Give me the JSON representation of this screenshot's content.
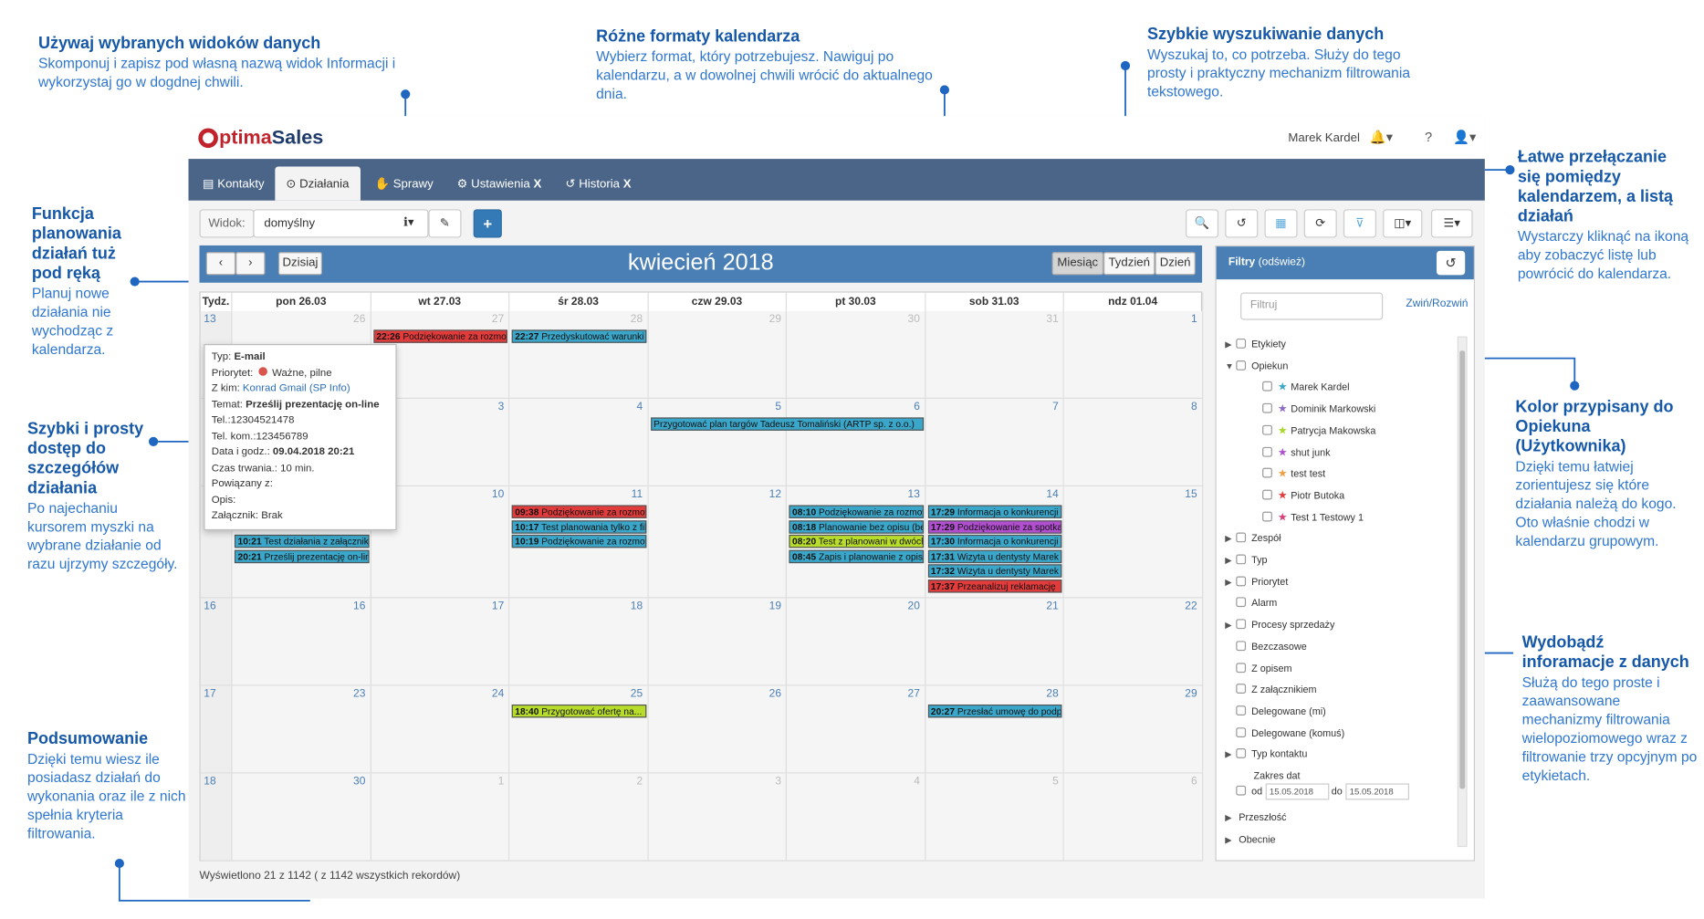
{
  "annotations": {
    "views": {
      "heading": "Używaj wybranych widoków danych",
      "body": "Skomponuj i zapisz pod własną nazwą widok Informacji i wykorzystaj go w dogdnej chwili."
    },
    "formats": {
      "heading": "Różne formaty kalendarza",
      "body": "Wybierz format, który potrzebujesz. Nawiguj po kalendarzu, a w dowolnej chwili wrócić do aktualnego dnia."
    },
    "search": {
      "heading": "Szybkie wyszukiwanie danych",
      "body": "Wyszukaj to, co potrzeba. Służy do tego prosty i praktyczny mechanizm filtrowania tekstowego."
    },
    "switch": {
      "heading": "Łatwe przełączanie się pomiędzy kalendarzem, a listą działań",
      "body": "Wystarczy kliknąć na ikoną aby zobaczyć listę lub powrócić do kalendarza."
    },
    "planning": {
      "heading": "Funkcja planowania działań tuż pod ręką",
      "body": "Planuj nowe działania nie wychodząc z kalendarza."
    },
    "details": {
      "heading": "Szybki i prosty dostęp do szczegółów działania",
      "body": "Po najechaniu kursorem myszki na wybrane działanie od razu ujrzymy szczegóły."
    },
    "color": {
      "heading": "Kolor przypisany do Opiekuna (Użytkownika)",
      "body": "Dzięki temu łatwiej zorientujesz się które działania należą do kogo. Oto właśnie chodzi w kalendarzu grupowym."
    },
    "extract": {
      "heading": "Wydobądź inforamacje z danych",
      "body": "Służą do tego proste i zaawansowane mechanizmy filtrowania wielopoziomowego wraz z filtrowanie trzy opcyjnym po etykietach."
    },
    "summary": {
      "heading": "Podsumowanie",
      "body": "Dzięki temu wiesz ile posiadasz działań do wykonania oraz ile z nich spełnia kryteria filtrowania."
    }
  },
  "header": {
    "logo_part1": "ptima",
    "logo_part2": "Sales",
    "user": "Marek Kardel"
  },
  "tabs": [
    {
      "label": "Kontakty",
      "icon": "id-card-icon",
      "close": ""
    },
    {
      "label": "Działania",
      "icon": "check-circle-icon",
      "close": ""
    },
    {
      "label": "Sprawy",
      "icon": "handshake-icon",
      "close": ""
    },
    {
      "label": "Ustawienia",
      "icon": "gear-icon",
      "close": "X"
    },
    {
      "label": "Historia",
      "icon": "history-icon",
      "close": "X"
    }
  ],
  "toolbar": {
    "view_label": "Widok:",
    "view_value": "domyślny",
    "add_label": "+"
  },
  "calendar": {
    "title": "kwiecień 2018",
    "today_label": "Dzisiaj",
    "view_month": "Miesiąc",
    "view_week": "Tydzień",
    "view_day": "Dzień",
    "week_header": "Tydz.",
    "day_headers": [
      "pon 26.03",
      "wt 27.03",
      "śr 28.03",
      "czw 29.03",
      "pt 30.03",
      "sob 31.03",
      "ndz 01.04"
    ],
    "weeks": [
      {
        "num": "13",
        "days": [
          "26",
          "27",
          "28",
          "29",
          "30",
          "31",
          "1"
        ],
        "other": [
          true,
          true,
          true,
          true,
          true,
          true,
          false
        ]
      },
      {
        "num": "",
        "days": [
          "2",
          "3",
          "4",
          "5",
          "6",
          "7",
          "8"
        ],
        "other": [
          false,
          false,
          false,
          false,
          false,
          false,
          false
        ]
      },
      {
        "num": "",
        "days": [
          "9",
          "10",
          "11",
          "12",
          "13",
          "14",
          "15"
        ],
        "other": [
          false,
          false,
          false,
          false,
          false,
          false,
          false
        ]
      },
      {
        "num": "16",
        "days": [
          "16",
          "17",
          "18",
          "19",
          "20",
          "21",
          "22"
        ],
        "other": [
          false,
          false,
          false,
          false,
          false,
          false,
          false
        ]
      },
      {
        "num": "17",
        "days": [
          "23",
          "24",
          "25",
          "26",
          "27",
          "28",
          "29"
        ],
        "other": [
          false,
          false,
          false,
          false,
          false,
          false,
          false
        ]
      },
      {
        "num": "18",
        "days": [
          "30",
          "1",
          "2",
          "3",
          "4",
          "5",
          "6"
        ],
        "other": [
          false,
          true,
          true,
          true,
          true,
          true,
          true
        ]
      }
    ],
    "events": [
      {
        "week": 0,
        "day": 1,
        "slot": 0,
        "span": 1,
        "time": "22:26",
        "text": "Podziękowanie za rozmowę",
        "color": "#e23b3b"
      },
      {
        "week": 0,
        "day": 2,
        "slot": 0,
        "span": 1,
        "time": "22:27",
        "text": "Przedyskutować warunki",
        "color": "#3aa6c9"
      },
      {
        "week": 1,
        "day": 3,
        "slot": 0,
        "span": 2,
        "time": "",
        "text": "Przygotować plan targów Tadeusz Tomaliński (ARTP sp. z o.o.)",
        "color": "#3aa6c9"
      },
      {
        "week": 2,
        "day": 0,
        "slot": 2,
        "span": 1,
        "time": "10:21",
        "text": "Test działania z załącznikiem",
        "color": "#3aa6c9"
      },
      {
        "week": 2,
        "day": 0,
        "slot": 3,
        "span": 1,
        "time": "20:21",
        "text": "Prześlij prezentację on-line",
        "color": "#3aa6c9"
      },
      {
        "week": 2,
        "day": 2,
        "slot": 0,
        "span": 1,
        "time": "09:38",
        "text": "Podziękowanie za rozmowę",
        "color": "#e23b3b"
      },
      {
        "week": 2,
        "day": 2,
        "slot": 1,
        "span": 1,
        "time": "10:17",
        "text": "Test planowania tylko z filtrem",
        "color": "#3aa6c9"
      },
      {
        "week": 2,
        "day": 2,
        "slot": 2,
        "span": 1,
        "time": "10:19",
        "text": "Podziękowanie za rozmowę",
        "color": "#3aa6c9"
      },
      {
        "week": 2,
        "day": 4,
        "slot": 0,
        "span": 1,
        "time": "08:10",
        "text": "Podziękowanie za rozmowę",
        "color": "#3aa6c9"
      },
      {
        "week": 2,
        "day": 4,
        "slot": 1,
        "span": 1,
        "time": "08:18",
        "text": "Planowanie bez opisu (bez)",
        "color": "#3aa6c9"
      },
      {
        "week": 2,
        "day": 4,
        "slot": 2,
        "span": 1,
        "time": "08:20",
        "text": "Test z planowani w dwóch",
        "color": "#b8dc2c"
      },
      {
        "week": 2,
        "day": 4,
        "slot": 3,
        "span": 1,
        "time": "08:45",
        "text": "Zapis i planowanie z opisem",
        "color": "#3aa6c9"
      },
      {
        "week": 2,
        "day": 5,
        "slot": 0,
        "span": 1,
        "time": "17:29",
        "text": "Informacja o konkurencji",
        "color": "#3aa6c9"
      },
      {
        "week": 2,
        "day": 5,
        "slot": 1,
        "span": 1,
        "time": "17:29",
        "text": "Podziękowanie za spotkanie",
        "color": "#b24fd1"
      },
      {
        "week": 2,
        "day": 5,
        "slot": 2,
        "span": 1,
        "time": "17:30",
        "text": "Informacja o konkurencji",
        "color": "#3aa6c9"
      },
      {
        "week": 2,
        "day": 5,
        "slot": 3,
        "span": 1,
        "time": "17:31",
        "text": "Wizyta u dentysty Marek",
        "color": "#3aa6c9"
      },
      {
        "week": 2,
        "day": 5,
        "slot": 4,
        "span": 1,
        "time": "17:32",
        "text": "Wizyta u dentysty Marek",
        "color": "#3aa6c9"
      },
      {
        "week": 2,
        "day": 5,
        "slot": 5,
        "span": 1,
        "time": "17:37",
        "text": "Przeanalizuj reklamację",
        "color": "#e23b3b"
      },
      {
        "week": 4,
        "day": 2,
        "slot": 0,
        "span": 1,
        "time": "18:40",
        "text": "Przygotować ofertę na...",
        "color": "#b8dc2c"
      },
      {
        "week": 4,
        "day": 5,
        "slot": 0,
        "span": 1,
        "time": "20:27",
        "text": "Przesłać umowę do podpisu",
        "color": "#3aa6c9"
      }
    ]
  },
  "tooltip": {
    "type_label": "Typ:",
    "type_value": "E-mail",
    "priority_label": "Priorytet:",
    "priority_value": "Ważne, pilne",
    "with_label": "Z kim:",
    "with_value": "Konrad Gmail (SP Info)",
    "subject_label": "Temat:",
    "subject_value": "Prześlij prezentację on-line",
    "tel_label": "Tel.:",
    "tel_value": "12304521478",
    "mob_label": "Tel. kom.:",
    "mob_value": "123456789",
    "date_label": "Data i godz.:",
    "date_value": "09.04.2018 20:21",
    "dur_label": "Czas trwania.:",
    "dur_value": "10 min.",
    "rel_label": "Powiązany z:",
    "rel_value": "",
    "desc_label": "Opis:",
    "desc_value": "",
    "att_label": "Załącznik:",
    "att_value": "Brak"
  },
  "footer": {
    "text": "Wyświetlono 21 z 1142 ( z 1142 wszystkich rekordów)"
  },
  "filters": {
    "title": "Filtry",
    "refresh": "(odśwież)",
    "placeholder": "Filtruj",
    "toggle": "Zwiń/Rozwiń",
    "items": [
      {
        "label": "Etykiety",
        "level": 0,
        "arrow": "▶",
        "star": ""
      },
      {
        "label": "Opiekun",
        "level": 0,
        "arrow": "▼",
        "star": ""
      },
      {
        "label": "Marek Kardel",
        "level": 1,
        "arrow": "",
        "star": "#3aa6c9"
      },
      {
        "label": "Dominik Markowski",
        "level": 1,
        "arrow": "",
        "star": "#8c6bc8"
      },
      {
        "label": "Patrycja Makowska",
        "level": 1,
        "arrow": "",
        "star": "#a8d82c"
      },
      {
        "label": "shut junk",
        "level": 1,
        "arrow": "",
        "star": "#b24fd1"
      },
      {
        "label": "test test",
        "level": 1,
        "arrow": "",
        "star": "#f0a040"
      },
      {
        "label": "Piotr Butoka",
        "level": 1,
        "arrow": "",
        "star": "#e23b3b"
      },
      {
        "label": "Test 1 Testowy 1",
        "level": 1,
        "arrow": "",
        "star": "#d83f7a"
      },
      {
        "label": "Zespół",
        "level": 0,
        "arrow": "▶",
        "star": ""
      },
      {
        "label": "Typ",
        "level": 0,
        "arrow": "▶",
        "star": ""
      },
      {
        "label": "Priorytet",
        "level": 0,
        "arrow": "▶",
        "star": ""
      },
      {
        "label": "Alarm",
        "level": 0,
        "arrow": "",
        "star": ""
      },
      {
        "label": "Procesy sprzedaży",
        "level": 0,
        "arrow": "▶",
        "star": ""
      },
      {
        "label": "Bezczasowe",
        "level": 0,
        "arrow": "",
        "star": ""
      },
      {
        "label": "Z opisem",
        "level": 0,
        "arrow": "",
        "star": ""
      },
      {
        "label": "Z załącznikiem",
        "level": 0,
        "arrow": "",
        "star": ""
      },
      {
        "label": "Delegowane (mi)",
        "level": 0,
        "arrow": "",
        "star": ""
      },
      {
        "label": "Delegowane (komuś)",
        "level": 0,
        "arrow": "",
        "star": ""
      },
      {
        "label": "Typ kontaktu",
        "level": 0,
        "arrow": "▶",
        "star": ""
      }
    ],
    "date_range": {
      "label": "Zakres dat",
      "from_label": "od",
      "from": "15.05.2018",
      "to_label": "do",
      "to": "15.05.2018"
    },
    "tail": [
      {
        "label": "Przeszłość",
        "arrow": "▶"
      },
      {
        "label": "Obecnie",
        "arrow": "▶"
      }
    ]
  }
}
